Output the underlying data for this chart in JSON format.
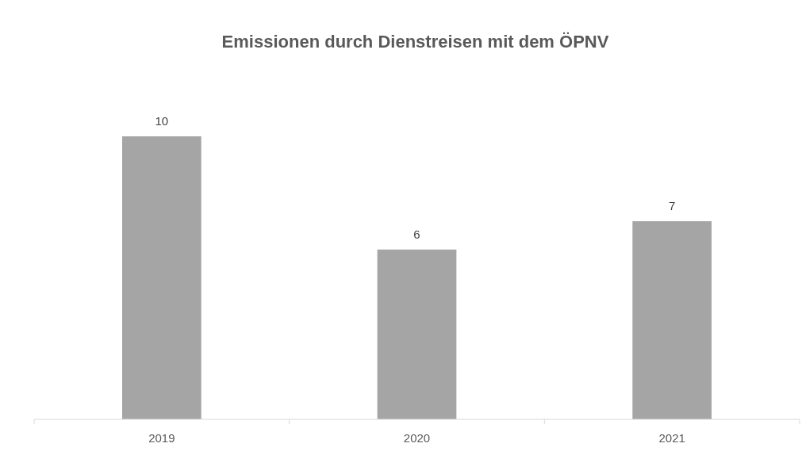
{
  "chart_data": {
    "type": "bar",
    "title": "Emissionen durch Dienstreisen mit dem ÖPNV",
    "categories": [
      "2019",
      "2020",
      "2021"
    ],
    "values": [
      10,
      6,
      7
    ],
    "color": "#a5a5a5",
    "data_labels": true
  }
}
